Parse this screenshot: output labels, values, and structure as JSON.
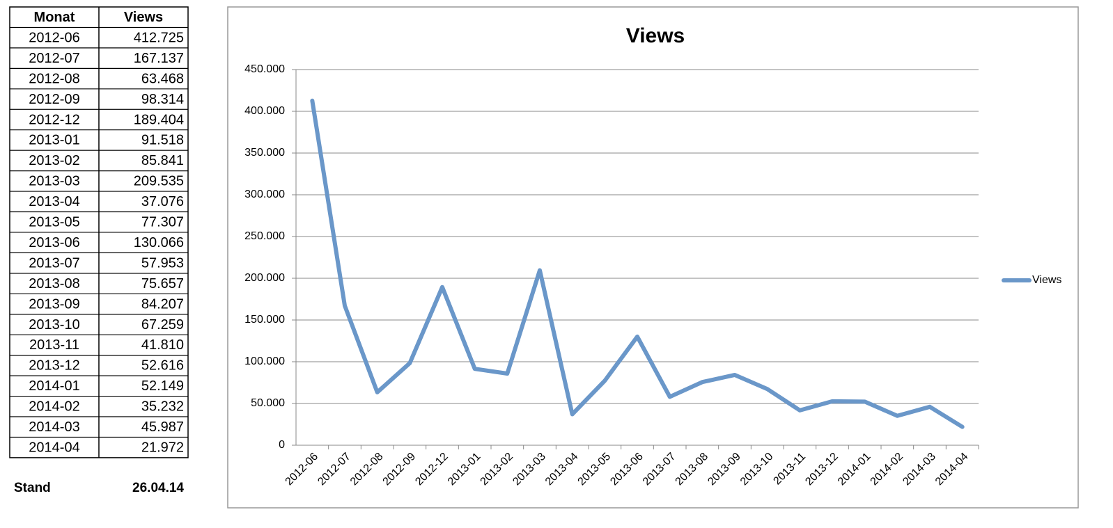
{
  "table": {
    "columns": [
      "Monat",
      "Views"
    ],
    "rows": [
      [
        "2012-06",
        "412.725"
      ],
      [
        "2012-07",
        "167.137"
      ],
      [
        "2012-08",
        "63.468"
      ],
      [
        "2012-09",
        "98.314"
      ],
      [
        "2012-12",
        "189.404"
      ],
      [
        "2013-01",
        "91.518"
      ],
      [
        "2013-02",
        "85.841"
      ],
      [
        "2013-03",
        "209.535"
      ],
      [
        "2013-04",
        "37.076"
      ],
      [
        "2013-05",
        "77.307"
      ],
      [
        "2013-06",
        "130.066"
      ],
      [
        "2013-07",
        "57.953"
      ],
      [
        "2013-08",
        "75.657"
      ],
      [
        "2013-09",
        "84.207"
      ],
      [
        "2013-10",
        "67.259"
      ],
      [
        "2013-11",
        "41.810"
      ],
      [
        "2013-12",
        "52.616"
      ],
      [
        "2014-01",
        "52.149"
      ],
      [
        "2014-02",
        "35.232"
      ],
      [
        "2014-03",
        "45.987"
      ],
      [
        "2014-04",
        "21.972"
      ]
    ],
    "footer": [
      "Stand",
      "26.04.14"
    ]
  },
  "chart_data": {
    "type": "line",
    "title": "Views",
    "categories": [
      "2012-06",
      "2012-07",
      "2012-08",
      "2012-09",
      "2012-12",
      "2013-01",
      "2013-02",
      "2013-03",
      "2013-04",
      "2013-05",
      "2013-06",
      "2013-07",
      "2013-08",
      "2013-09",
      "2013-10",
      "2013-11",
      "2013-12",
      "2014-01",
      "2014-02",
      "2014-03",
      "2014-04"
    ],
    "series": [
      {
        "name": "Views",
        "color": "#6a97c9",
        "values": [
          412725,
          167137,
          63468,
          98314,
          189404,
          91518,
          85841,
          209535,
          37076,
          77307,
          130066,
          57953,
          75657,
          84207,
          67259,
          41810,
          52616,
          52149,
          35232,
          45987,
          21972
        ]
      }
    ],
    "ylim": [
      0,
      450000
    ],
    "yticks": [
      0,
      {
        "value": 50000,
        "label": "50.000"
      },
      {
        "value": 100000,
        "label": "100.000"
      },
      {
        "value": 150000,
        "label": "150.000"
      },
      {
        "value": 200000,
        "label": "200.000"
      },
      {
        "value": 250000,
        "label": "250.000"
      },
      {
        "value": 300000,
        "label": "300.000"
      },
      {
        "value": 350000,
        "label": "350.000"
      },
      {
        "value": 400000,
        "label": "400.000"
      },
      {
        "value": 450000,
        "label": "450.000"
      }
    ],
    "grid": true,
    "legend": "right"
  }
}
